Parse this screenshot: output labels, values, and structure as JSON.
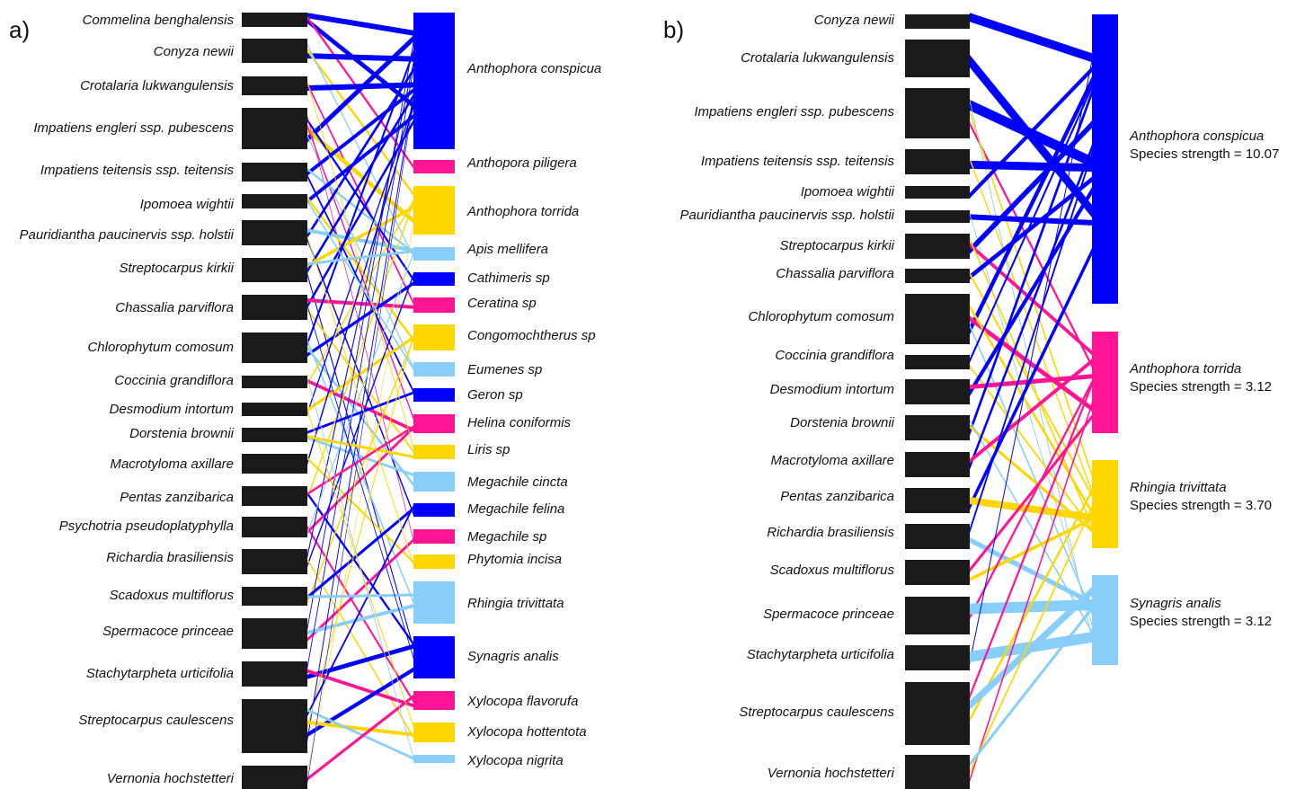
{
  "panel_a": {
    "label": "a)",
    "plants": [
      "Commelina benghalensis",
      "Conyza newii",
      "Crotalaria lukwangulensis",
      "Impatiens engleri ssp. pubescens",
      "Impatiens teitensis ssp. teitensis",
      "Ipomoea wightii",
      "Pauridiantha paucinervis ssp. holstii",
      "Streptocarpus kirkii",
      "Chassalia parviflora",
      "Chlorophytum comosum",
      "Coccinia grandiflora",
      "Desmodium intortum",
      "Dorstenia brownii",
      "Macrotyloma axillare",
      "Pentas zanzibarica",
      "Psychotria pseudoplatyphylla",
      "Richardia brasiliensis",
      "Scadoxus multiflorus",
      "Spermacoce princeae",
      "Stachytarpheta urticifolia",
      "Streptocarpus caulescens",
      "Vernonia hochstetteri"
    ],
    "pollinators": [
      {
        "name": "Anthophora conspicua",
        "color": "#0000FF"
      },
      {
        "name": "Anthopora piligera",
        "color": "#FF1493"
      },
      {
        "name": "Anthophora torrida",
        "color": "#FFD700"
      },
      {
        "name": "Apis mellifera",
        "color": "#87CEFA"
      },
      {
        "name": "Cathimeris sp",
        "color": "#0000FF"
      },
      {
        "name": "Ceratina sp",
        "color": "#FF1493"
      },
      {
        "name": "Congomochtherus sp",
        "color": "#FFD700"
      },
      {
        "name": "Eumenes sp",
        "color": "#87CEFA"
      },
      {
        "name": "Geron sp",
        "color": "#0000FF"
      },
      {
        "name": "Helina coniformis",
        "color": "#FF1493"
      },
      {
        "name": "Liris sp",
        "color": "#FFD700"
      },
      {
        "name": "Megachile cincta",
        "color": "#87CEFA"
      },
      {
        "name": "Megachile felina",
        "color": "#0000FF"
      },
      {
        "name": "Megachile sp",
        "color": "#FF1493"
      },
      {
        "name": "Phytomia incisa",
        "color": "#FFD700"
      },
      {
        "name": "Rhingia trivittata",
        "color": "#87CEFA"
      },
      {
        "name": "Synagris analis",
        "color": "#0000FF"
      },
      {
        "name": "Xylocopa flavorufa",
        "color": "#FF1493"
      },
      {
        "name": "Xylocopa hottentota",
        "color": "#FFD700"
      },
      {
        "name": "Xylocopa nigrita",
        "color": "#87CEFA"
      }
    ]
  },
  "panel_b": {
    "label": "b)",
    "plants": [
      "Conyza newii",
      "Crotalaria lukwangulensis",
      "Impatiens engleri ssp. pubescens",
      "Impatiens teitensis ssp. teitensis",
      "Ipomoea wightii",
      "Pauridiantha paucinervis ssp. holstii",
      "Streptocarpus kirkii",
      "Chassalia parviflora",
      "Chlorophytum comosum",
      "Coccinia grandiflora",
      "Desmodium intortum",
      "Dorstenia brownii",
      "Macrotyloma axillare",
      "Pentas zanzibarica",
      "Richardia brasiliensis",
      "Scadoxus multiflorus",
      "Spermacoce princeae",
      "Stachytarpheta urticifolia",
      "Streptocarpus caulescens",
      "Vernonia hochstetteri"
    ],
    "pollinators": [
      {
        "name": "Anthophora conspicua",
        "strength": "Species strength = 10.07",
        "color": "#0000FF"
      },
      {
        "name": "Anthophora torrida",
        "strength": "Species strength = 3.12",
        "color": "#FF1493"
      },
      {
        "name": "Rhingia trivittata",
        "strength": "Species strength = 3.70",
        "color": "#FFD700"
      },
      {
        "name": "Synagris analis",
        "strength": "Species strength = 3.12",
        "color": "#87CEFA"
      }
    ]
  },
  "colors": {
    "plant_bar": "#1a1a1a",
    "blue": "#0000FF",
    "pink": "#FF1493",
    "yellow": "#FFD700",
    "light_blue": "#87CEFA"
  }
}
